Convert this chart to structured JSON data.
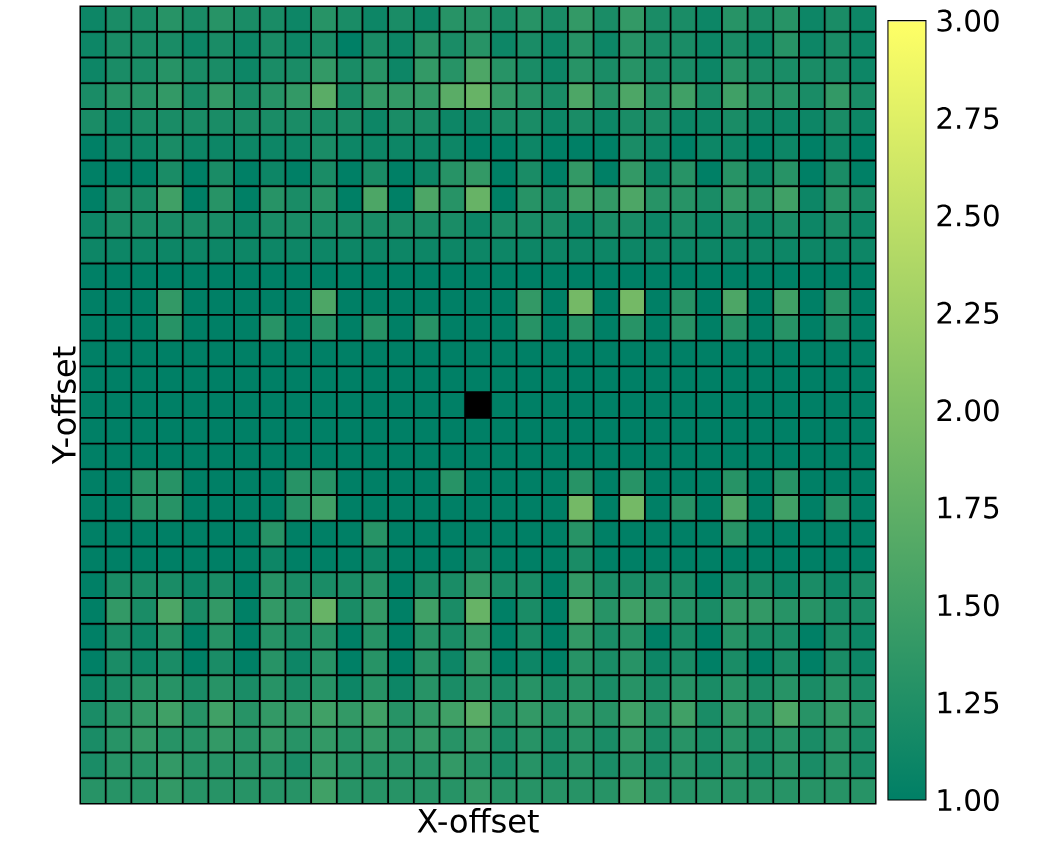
{
  "chart_data": {
    "type": "heatmap",
    "xlabel": "X-offset",
    "ylabel": "Y-offset",
    "categories": [
      null,
      null,
      null,
      null,
      null,
      null,
      null,
      null,
      null,
      null,
      null,
      null,
      null,
      null,
      null,
      null,
      null,
      null,
      null,
      null,
      null,
      null,
      null,
      null,
      null,
      null,
      null,
      null,
      null,
      null,
      null
    ],
    "y_categories": [
      null,
      null,
      null,
      null,
      null,
      null,
      null,
      null,
      null,
      null,
      null,
      null,
      null,
      null,
      null,
      null,
      null,
      null,
      null,
      null,
      null,
      null,
      null,
      null,
      null,
      null,
      null,
      null,
      null,
      null,
      null
    ],
    "clim": [
      1,
      3
    ],
    "cticks": [
      {
        "value": 1,
        "label": "1.00"
      },
      {
        "value": 1.25,
        "label": "1.25"
      },
      {
        "value": 1.5,
        "label": "1.50"
      },
      {
        "value": 1.75,
        "label": "1.75"
      },
      {
        "value": 2,
        "label": "2.00"
      },
      {
        "value": 2.25,
        "label": "2.25"
      },
      {
        "value": 2.5,
        "label": "2.50"
      },
      {
        "value": 2.75,
        "label": "2.75"
      },
      {
        "value": 3,
        "label": "3.00"
      }
    ],
    "cells": [
      [
        1.1,
        1.2,
        1.2,
        1.3,
        1.2,
        1.3,
        1.2,
        1.2,
        1.1,
        1.3,
        1.2,
        1.1,
        1.2,
        1.1,
        1.3,
        1.3,
        1.2,
        1.3,
        1.2,
        1.4,
        1.2,
        1.4,
        1.2,
        1.2,
        1.1,
        1.3,
        1.2,
        1.3,
        1.1,
        1.2,
        1.1
      ],
      [
        1.1,
        1.2,
        1.2,
        1.2,
        1.1,
        1.2,
        1.1,
        1.2,
        1.1,
        1.2,
        1,
        1.2,
        1.1,
        1.3,
        1.2,
        1.3,
        1.1,
        1.2,
        1.1,
        1.3,
        1.1,
        1.3,
        1.2,
        1.2,
        1.1,
        1.2,
        1.1,
        1.3,
        1.1,
        1.2,
        1.1
      ],
      [
        1.1,
        1.2,
        1.2,
        1.3,
        1.2,
        1.2,
        1.1,
        1.2,
        1.2,
        1.4,
        1.2,
        1.3,
        1.1,
        1.4,
        1.3,
        1.6,
        1.3,
        1.2,
        1.1,
        1.3,
        1.2,
        1.3,
        1.2,
        1.2,
        1.1,
        1.3,
        1.2,
        1.2,
        1.2,
        1.2,
        1.1
      ],
      [
        1.2,
        1.3,
        1.3,
        1.4,
        1.2,
        1.4,
        1.2,
        1.3,
        1.4,
        1.7,
        1.2,
        1.4,
        1.4,
        1.4,
        1.7,
        1.8,
        1.4,
        1.3,
        1.2,
        1.6,
        1.3,
        1.6,
        1.3,
        1.5,
        1.2,
        1.5,
        1.3,
        1.3,
        1.2,
        1.4,
        1.2
      ],
      [
        1.2,
        1.1,
        1.2,
        1.2,
        1.2,
        1.2,
        1.2,
        1.2,
        1.2,
        1.2,
        1.2,
        1.1,
        1.2,
        1.2,
        1.1,
        1.1,
        1.2,
        1.2,
        1.1,
        1.2,
        1.1,
        1.2,
        1.2,
        1.1,
        1.1,
        1.2,
        1.1,
        1.1,
        1.1,
        1.2,
        1.1
      ],
      [
        1,
        1.1,
        1.1,
        1.2,
        1.1,
        1.1,
        1.1,
        1.1,
        1.1,
        1.2,
        1.1,
        1.1,
        1.1,
        1.1,
        1.1,
        1,
        1,
        1.1,
        1,
        1,
        1,
        1.2,
        1.1,
        1,
        1.1,
        1.1,
        1,
        1.1,
        1,
        1.1,
        1
      ],
      [
        1,
        1,
        1,
        1.2,
        1,
        1.2,
        1,
        1.1,
        1,
        1.2,
        1,
        1.2,
        1,
        1.1,
        1.3,
        1.4,
        1,
        1.2,
        1,
        1.4,
        1,
        1.4,
        1.1,
        1.3,
        1,
        1.3,
        1.1,
        1.3,
        1,
        1.2,
        1
      ],
      [
        1,
        1.2,
        1.2,
        1.5,
        1,
        1.3,
        1,
        1.3,
        1.2,
        1.3,
        1,
        1.6,
        1,
        1.6,
        1.3,
        1.8,
        1,
        1.3,
        1.2,
        1.5,
        1.4,
        1.6,
        1.3,
        1.3,
        1.2,
        1.4,
        1.3,
        1.5,
        1.1,
        1.3,
        1.2
      ],
      [
        1.1,
        1.2,
        1.2,
        1.2,
        1.2,
        1.2,
        1.1,
        1.2,
        1.2,
        1.2,
        1.2,
        1.2,
        1.2,
        1.2,
        1.2,
        1.1,
        1.2,
        1.2,
        1.2,
        1.1,
        1.2,
        1.2,
        1.1,
        1.2,
        1.1,
        1.2,
        1.1,
        1.2,
        1.1,
        1.2,
        1.1
      ],
      [
        1.1,
        1.1,
        1.1,
        1.1,
        1.1,
        1.1,
        1.1,
        1.1,
        1.1,
        1.1,
        1.1,
        1.1,
        1.1,
        1.1,
        1.1,
        1.1,
        1.1,
        1.1,
        1.1,
        1.1,
        1.1,
        1.1,
        1.1,
        1.1,
        1.1,
        1.1,
        1.1,
        1.1,
        1.1,
        1.1,
        1.1
      ],
      [
        1,
        1,
        1,
        1,
        1,
        1,
        1,
        1,
        1,
        1,
        1,
        1,
        1,
        1,
        1,
        1,
        1,
        1,
        1,
        1,
        1,
        1,
        1,
        1,
        1,
        1,
        1,
        1,
        1,
        1,
        1
      ],
      [
        1,
        1,
        1,
        1.4,
        1,
        1,
        1,
        1,
        1,
        1.6,
        1,
        1,
        1,
        1,
        1,
        1,
        1,
        1.4,
        1,
        1.9,
        1,
        1.9,
        1,
        1.3,
        1,
        1.6,
        1,
        1.5,
        1,
        1.3,
        1
      ],
      [
        1,
        1,
        1,
        1.3,
        1,
        1,
        1,
        1.3,
        1,
        1.3,
        1,
        1.3,
        1,
        1.3,
        1,
        1,
        1,
        1.3,
        1,
        1.3,
        1,
        1.3,
        1,
        1.3,
        1,
        1.3,
        1,
        1.3,
        1,
        1.2,
        1
      ],
      [
        1,
        1,
        1,
        1,
        1,
        1,
        1,
        1,
        1,
        1,
        1,
        1,
        1,
        1,
        1,
        1,
        1,
        1,
        1,
        1,
        1,
        1,
        1,
        1,
        1,
        1,
        1,
        1,
        1,
        1,
        1
      ],
      [
        1,
        1,
        1,
        1,
        1,
        1,
        1,
        1,
        1,
        1,
        1,
        1,
        1,
        1,
        1,
        1,
        1,
        1,
        1,
        1,
        1,
        1,
        1,
        1,
        1,
        1,
        1,
        1,
        1,
        1,
        1
      ],
      [
        1,
        1,
        1,
        1,
        1,
        1,
        1,
        1,
        1,
        1,
        1,
        1,
        1,
        1,
        1,
        null,
        1,
        1,
        1,
        1,
        1,
        1,
        1,
        1,
        1,
        1,
        1,
        1,
        1,
        1,
        1
      ],
      [
        1,
        1,
        1,
        1,
        1,
        1,
        1,
        1,
        1,
        1,
        1,
        1,
        1,
        1,
        1,
        1,
        1,
        1,
        1,
        1,
        1,
        1,
        1,
        1,
        1,
        1,
        1,
        1,
        1,
        1,
        1
      ],
      [
        1,
        1,
        1,
        1,
        1,
        1,
        1,
        1,
        1,
        1,
        1,
        1,
        1,
        1,
        1,
        1,
        1,
        1,
        1,
        1,
        1,
        1,
        1,
        1,
        1,
        1,
        1,
        1,
        1,
        1,
        1
      ],
      [
        1,
        1,
        1.3,
        1.3,
        1,
        1,
        1,
        1,
        1.3,
        1.3,
        1,
        1,
        1,
        1,
        1.3,
        1,
        1,
        1,
        1,
        1.3,
        1,
        1.3,
        1,
        1,
        1,
        1.3,
        1,
        1.3,
        1,
        1,
        1
      ],
      [
        1,
        1,
        1.3,
        1.3,
        1,
        1,
        1,
        1,
        1.3,
        1.5,
        1,
        1,
        1,
        1,
        1,
        1,
        1,
        1,
        1,
        1.9,
        1,
        1.9,
        1,
        1.3,
        1,
        1.6,
        1,
        1.5,
        1,
        1.3,
        1
      ],
      [
        1,
        1,
        1,
        1,
        1,
        1,
        1,
        1.3,
        1,
        1,
        1,
        1.3,
        1,
        1,
        1,
        1,
        1,
        1,
        1,
        1.3,
        1,
        1,
        1,
        1,
        1,
        1.3,
        1,
        1,
        1,
        1,
        1
      ],
      [
        1,
        1,
        1,
        1,
        1,
        1,
        1,
        1.1,
        1,
        1,
        1,
        1.1,
        1,
        1,
        1,
        1.1,
        1,
        1,
        1,
        1.2,
        1,
        1,
        1,
        1,
        1,
        1,
        1,
        1,
        1,
        1,
        1
      ],
      [
        1,
        1.2,
        1.2,
        1.2,
        1.1,
        1.2,
        1,
        1.3,
        1.2,
        1.2,
        1.2,
        1.3,
        1,
        1.2,
        1.2,
        1.4,
        1.2,
        1.2,
        1,
        1.4,
        1.2,
        1.2,
        1.2,
        1.2,
        1,
        1.2,
        1.2,
        1.1,
        1.2,
        1.1,
        1.2
      ],
      [
        1,
        1.4,
        1.2,
        1.6,
        1.2,
        1.4,
        1,
        1.4,
        1.3,
        1.8,
        1.2,
        1.4,
        1,
        1.5,
        1.2,
        1.8,
        1,
        1.2,
        1,
        1.6,
        1.3,
        1.5,
        1.4,
        1.3,
        1.2,
        1.4,
        1.4,
        1.3,
        1.3,
        1.2,
        1.2
      ],
      [
        1,
        1.2,
        1.1,
        1.3,
        1,
        1.3,
        1,
        1.3,
        1.2,
        1.3,
        1,
        1.3,
        1,
        1.3,
        1.2,
        1.4,
        1,
        1.2,
        1,
        1.4,
        1.2,
        1.3,
        1,
        1.2,
        1,
        1.3,
        1.2,
        1.2,
        1,
        1.2,
        1.1
      ],
      [
        1,
        1.2,
        1.1,
        1.2,
        1,
        1.2,
        1,
        1.3,
        1.1,
        1.3,
        1,
        1.3,
        1,
        1.3,
        1.1,
        1.4,
        1,
        1.1,
        1,
        1.3,
        1.2,
        1.3,
        1.1,
        1.2,
        1,
        1.2,
        1,
        1.2,
        1,
        1.2,
        1.1
      ],
      [
        1.1,
        1.2,
        1.3,
        1.3,
        1.2,
        1.3,
        1.2,
        1.3,
        1.2,
        1.3,
        1.1,
        1.3,
        1.1,
        1.3,
        1.2,
        1.3,
        1.2,
        1.3,
        1.2,
        1.3,
        1.2,
        1.3,
        1.2,
        1.3,
        1.2,
        1.3,
        1.2,
        1.3,
        1.2,
        1.3,
        1.2
      ],
      [
        1.2,
        1.3,
        1.4,
        1.5,
        1.3,
        1.5,
        1.3,
        1.4,
        1.4,
        1.5,
        1.4,
        1.5,
        1.3,
        1.4,
        1.5,
        1.7,
        1.3,
        1.4,
        1.3,
        1.4,
        1.3,
        1.5,
        1.3,
        1.5,
        1.2,
        1.4,
        1.3,
        1.6,
        1.3,
        1.4,
        1.3
      ],
      [
        1.2,
        1.3,
        1.4,
        1.3,
        1.3,
        1.4,
        1.3,
        1.4,
        1.3,
        1.4,
        1.3,
        1.4,
        1.3,
        1.4,
        1.3,
        1.4,
        1.2,
        1.3,
        1.2,
        1.3,
        1.2,
        1.4,
        1.2,
        1.3,
        1.2,
        1.3,
        1.2,
        1.3,
        1.2,
        1.3,
        1.2
      ],
      [
        1.2,
        1.3,
        1.3,
        1.4,
        1.3,
        1.3,
        1.3,
        1.3,
        1.2,
        1.4,
        1.3,
        1.3,
        1.3,
        1.3,
        1.4,
        1.3,
        1.2,
        1.3,
        1.2,
        1.3,
        1.2,
        1.3,
        1.2,
        1.3,
        1.2,
        1.3,
        1.2,
        1.3,
        1.2,
        1.3,
        1.2
      ],
      [
        1.3,
        1.3,
        1.3,
        1.4,
        1.3,
        1.3,
        1.3,
        1.3,
        1.3,
        1.5,
        1.3,
        1.3,
        1.3,
        1.3,
        1.3,
        1.4,
        1.3,
        1.3,
        1.3,
        1.3,
        1.3,
        1.5,
        1.3,
        1.3,
        1.3,
        1.3,
        1.3,
        1.3,
        1.3,
        1.3,
        1.3
      ]
    ]
  }
}
